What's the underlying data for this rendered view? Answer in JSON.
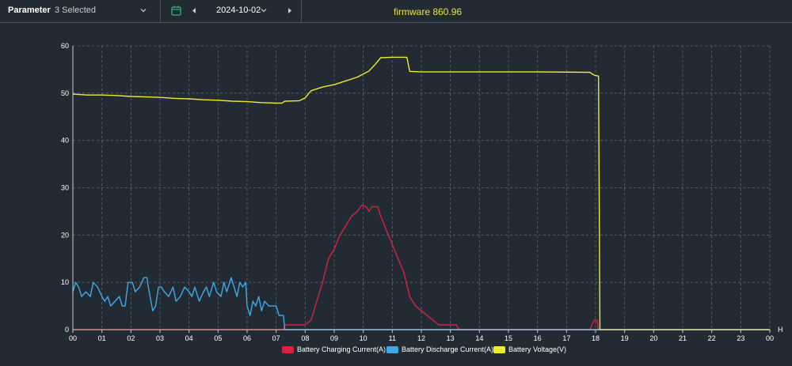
{
  "toolbar": {
    "parameter_label": "Parameter",
    "parameter_value": "3 Selected",
    "date": "2024-10-02",
    "firmware": "firmware 860.96"
  },
  "colors": {
    "background": "#222b33",
    "grid": "#5f6870",
    "charging": "#d8223c",
    "discharge": "#3fa9e8",
    "voltage": "#eeea2e",
    "accent_green": "#2fb87a"
  },
  "chart_data": {
    "type": "line",
    "x_unit": "H",
    "xlim": [
      0,
      24
    ],
    "ylim": [
      0,
      60
    ],
    "x_ticks": [
      "00",
      "01",
      "02",
      "03",
      "04",
      "05",
      "06",
      "07",
      "08",
      "09",
      "10",
      "11",
      "12",
      "13",
      "14",
      "15",
      "16",
      "17",
      "18",
      "19",
      "20",
      "21",
      "22",
      "23",
      "00"
    ],
    "y_ticks": [
      0,
      10,
      20,
      30,
      40,
      50,
      60
    ],
    "grid": true,
    "legend_position": "bottom-center",
    "series": [
      {
        "name": "Battery Charging Current(A)",
        "color": "#d8223c",
        "points": [
          [
            0,
            0
          ],
          [
            7.25,
            0
          ],
          [
            7.3,
            1
          ],
          [
            8.0,
            1
          ],
          [
            8.2,
            2
          ],
          [
            8.4,
            6
          ],
          [
            8.6,
            10
          ],
          [
            8.8,
            15
          ],
          [
            9.0,
            17
          ],
          [
            9.2,
            20
          ],
          [
            9.4,
            22
          ],
          [
            9.6,
            24
          ],
          [
            9.8,
            25
          ],
          [
            9.95,
            26.3
          ],
          [
            10.1,
            26
          ],
          [
            10.2,
            25
          ],
          [
            10.3,
            26
          ],
          [
            10.5,
            26
          ],
          [
            10.6,
            24
          ],
          [
            10.8,
            21
          ],
          [
            11.0,
            18
          ],
          [
            11.2,
            15
          ],
          [
            11.4,
            12
          ],
          [
            11.6,
            7
          ],
          [
            11.8,
            5
          ],
          [
            12.0,
            4
          ],
          [
            12.2,
            3
          ],
          [
            12.4,
            2
          ],
          [
            12.6,
            1
          ],
          [
            13.0,
            1
          ],
          [
            13.2,
            1
          ],
          [
            13.3,
            0
          ],
          [
            17.8,
            0
          ],
          [
            17.95,
            2
          ],
          [
            18.05,
            2
          ],
          [
            18.1,
            0
          ],
          [
            24,
            0
          ]
        ]
      },
      {
        "name": "Battery Discharge Current(A)",
        "color": "#3fa9e8",
        "points": [
          [
            0.0,
            8
          ],
          [
            0.1,
            10
          ],
          [
            0.2,
            9
          ],
          [
            0.3,
            7
          ],
          [
            0.45,
            8
          ],
          [
            0.6,
            7
          ],
          [
            0.7,
            10
          ],
          [
            0.85,
            9
          ],
          [
            1.0,
            7
          ],
          [
            1.1,
            6
          ],
          [
            1.2,
            7
          ],
          [
            1.3,
            5
          ],
          [
            1.45,
            6
          ],
          [
            1.6,
            7
          ],
          [
            1.7,
            5
          ],
          [
            1.8,
            5
          ],
          [
            1.9,
            10
          ],
          [
            2.05,
            10
          ],
          [
            2.15,
            8
          ],
          [
            2.3,
            9
          ],
          [
            2.45,
            11
          ],
          [
            2.55,
            11
          ],
          [
            2.6,
            9
          ],
          [
            2.75,
            4
          ],
          [
            2.85,
            5
          ],
          [
            2.95,
            9
          ],
          [
            3.05,
            9
          ],
          [
            3.15,
            8
          ],
          [
            3.3,
            7
          ],
          [
            3.45,
            9
          ],
          [
            3.55,
            6
          ],
          [
            3.7,
            7
          ],
          [
            3.85,
            9
          ],
          [
            4.0,
            8
          ],
          [
            4.1,
            7
          ],
          [
            4.2,
            9
          ],
          [
            4.35,
            6
          ],
          [
            4.5,
            8
          ],
          [
            4.6,
            9
          ],
          [
            4.7,
            7
          ],
          [
            4.85,
            10
          ],
          [
            4.95,
            8
          ],
          [
            5.1,
            7
          ],
          [
            5.2,
            10
          ],
          [
            5.3,
            8
          ],
          [
            5.45,
            11
          ],
          [
            5.55,
            9
          ],
          [
            5.65,
            7
          ],
          [
            5.75,
            10
          ],
          [
            5.85,
            9
          ],
          [
            5.95,
            10
          ],
          [
            6.0,
            5
          ],
          [
            6.1,
            3
          ],
          [
            6.2,
            6
          ],
          [
            6.3,
            5
          ],
          [
            6.4,
            7
          ],
          [
            6.5,
            4
          ],
          [
            6.6,
            6
          ],
          [
            6.75,
            5
          ],
          [
            7.0,
            5
          ],
          [
            7.1,
            3
          ],
          [
            7.25,
            3
          ],
          [
            7.3,
            0
          ],
          [
            24,
            0
          ]
        ]
      },
      {
        "name": "Battery Voltage(V)",
        "color": "#eeea2e",
        "points": [
          [
            0,
            49.8
          ],
          [
            0.5,
            49.6
          ],
          [
            1.0,
            49.6
          ],
          [
            1.5,
            49.5
          ],
          [
            2.0,
            49.3
          ],
          [
            2.5,
            49.2
          ],
          [
            3.0,
            49.1
          ],
          [
            3.5,
            48.9
          ],
          [
            4.0,
            48.8
          ],
          [
            4.5,
            48.6
          ],
          [
            5.0,
            48.5
          ],
          [
            5.5,
            48.3
          ],
          [
            6.0,
            48.2
          ],
          [
            6.5,
            48.0
          ],
          [
            7.0,
            47.9
          ],
          [
            7.2,
            47.9
          ],
          [
            7.3,
            48.3
          ],
          [
            7.8,
            48.4
          ],
          [
            8.0,
            49.0
          ],
          [
            8.2,
            50.5
          ],
          [
            8.6,
            51.3
          ],
          [
            9.0,
            51.8
          ],
          [
            9.4,
            52.6
          ],
          [
            9.8,
            53.4
          ],
          [
            10.2,
            54.7
          ],
          [
            10.4,
            56.0
          ],
          [
            10.6,
            57.5
          ],
          [
            11.0,
            57.6
          ],
          [
            11.5,
            57.6
          ],
          [
            11.6,
            54.6
          ],
          [
            12.0,
            54.5
          ],
          [
            14.0,
            54.5
          ],
          [
            16.0,
            54.5
          ],
          [
            17.8,
            54.4
          ],
          [
            17.95,
            53.8
          ],
          [
            18.1,
            53.6
          ],
          [
            18.15,
            0
          ],
          [
            24,
            0
          ]
        ]
      }
    ]
  }
}
